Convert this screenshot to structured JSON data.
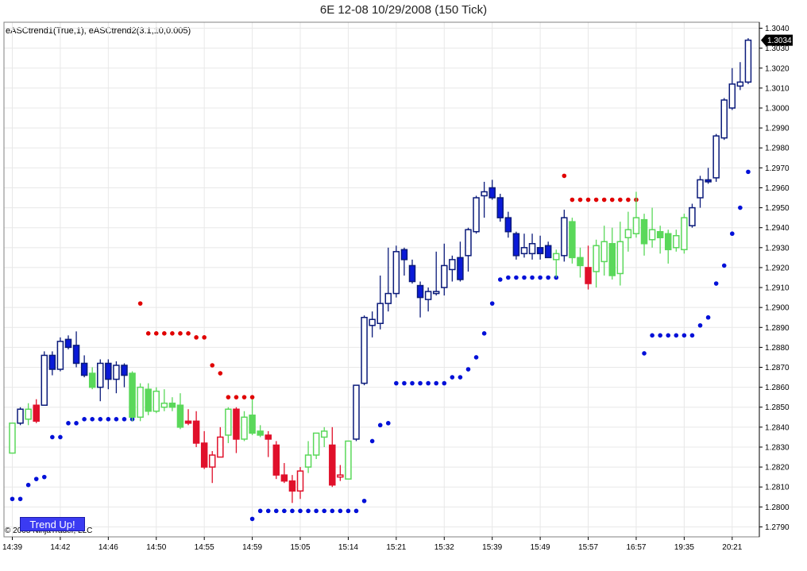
{
  "title": "6E 12-08  10/29/2008 (150 Tick)",
  "indicator_label": "eASCtrend1(True,1), eASCtrend2(3.1,10,0.005)",
  "copyright": "© 2008 NinjaTrader, LLC",
  "trend_button": {
    "label": "Trend Up!",
    "color": "#3b3bf2"
  },
  "colors": {
    "up_outline": "#0a1a7a",
    "down_fill": "#0a1ad8",
    "neutral": "#5ad85a",
    "bear": "#e0102a",
    "dot_red": "#e00000",
    "dot_blue": "#0010d8",
    "grid": "#e8e8e8"
  },
  "chart_data": {
    "type": "candlestick",
    "title": "6E 12-08  10/29/2008 (150 Tick)",
    "ylim": [
      1.2785,
      1.3043
    ],
    "y_ticks": [
      "1.2790",
      "1.2800",
      "1.2810",
      "1.2820",
      "1.2830",
      "1.2840",
      "1.2850",
      "1.2860",
      "1.2870",
      "1.2880",
      "1.2890",
      "1.2900",
      "1.2910",
      "1.2920",
      "1.2930",
      "1.2940",
      "1.2950",
      "1.2960",
      "1.2970",
      "1.2980",
      "1.2990",
      "1.3000",
      "1.3010",
      "1.3020",
      "1.3030",
      "1.3040"
    ],
    "last_price": "1.3034",
    "x_ticks": [
      {
        "label": "14:39",
        "bar": 0
      },
      {
        "label": "14:42",
        "bar": 6
      },
      {
        "label": "14:46",
        "bar": 12
      },
      {
        "label": "14:50",
        "bar": 18
      },
      {
        "label": "14:55",
        "bar": 24
      },
      {
        "label": "14:59",
        "bar": 30
      },
      {
        "label": "15:05",
        "bar": 36
      },
      {
        "label": "15:14",
        "bar": 42
      },
      {
        "label": "15:21",
        "bar": 48
      },
      {
        "label": "15:32",
        "bar": 54
      },
      {
        "label": "15:39",
        "bar": 60
      },
      {
        "label": "15:49",
        "bar": 66
      },
      {
        "label": "15:57",
        "bar": 72
      },
      {
        "label": "16:57",
        "bar": 78
      },
      {
        "label": "19:35",
        "bar": 84
      },
      {
        "label": "20:21",
        "bar": 90
      }
    ],
    "candles": [
      {
        "o": 1.2827,
        "h": 1.2842,
        "l": 1.2827,
        "c": 1.2842,
        "k": "n"
      },
      {
        "o": 1.2842,
        "h": 1.285,
        "l": 1.2841,
        "c": 1.2849,
        "k": "u"
      },
      {
        "o": 1.2844,
        "h": 1.2852,
        "l": 1.2841,
        "c": 1.2849,
        "k": "n"
      },
      {
        "o": 1.2843,
        "h": 1.2854,
        "l": 1.2842,
        "c": 1.2851,
        "k": "b"
      },
      {
        "o": 1.2851,
        "h": 1.2878,
        "l": 1.2851,
        "c": 1.2876,
        "k": "u"
      },
      {
        "o": 1.2876,
        "h": 1.2878,
        "l": 1.2866,
        "c": 1.2869,
        "k": "d"
      },
      {
        "o": 1.2869,
        "h": 1.2885,
        "l": 1.2868,
        "c": 1.2883,
        "k": "u"
      },
      {
        "o": 1.2884,
        "h": 1.2886,
        "l": 1.2879,
        "c": 1.288,
        "k": "d"
      },
      {
        "o": 1.2881,
        "h": 1.2888,
        "l": 1.287,
        "c": 1.2872,
        "k": "d"
      },
      {
        "o": 1.2872,
        "h": 1.2876,
        "l": 1.2865,
        "c": 1.2866,
        "k": "d"
      },
      {
        "o": 1.2867,
        "h": 1.287,
        "l": 1.2859,
        "c": 1.286,
        "k": "n"
      },
      {
        "o": 1.286,
        "h": 1.2874,
        "l": 1.2853,
        "c": 1.2872,
        "k": "u"
      },
      {
        "o": 1.2872,
        "h": 1.2874,
        "l": 1.2859,
        "c": 1.2864,
        "k": "d"
      },
      {
        "o": 1.2864,
        "h": 1.2873,
        "l": 1.2857,
        "c": 1.2871,
        "k": "u"
      },
      {
        "o": 1.2871,
        "h": 1.2872,
        "l": 1.286,
        "c": 1.2866,
        "k": "d"
      },
      {
        "o": 1.2867,
        "h": 1.2868,
        "l": 1.2843,
        "c": 1.2845,
        "k": "n"
      },
      {
        "o": 1.2845,
        "h": 1.2862,
        "l": 1.2843,
        "c": 1.286,
        "k": "n"
      },
      {
        "o": 1.2859,
        "h": 1.2862,
        "l": 1.2846,
        "c": 1.2848,
        "k": "n"
      },
      {
        "o": 1.2848,
        "h": 1.286,
        "l": 1.2847,
        "c": 1.2858,
        "k": "n"
      },
      {
        "o": 1.285,
        "h": 1.2859,
        "l": 1.2848,
        "c": 1.2852,
        "k": "n"
      },
      {
        "o": 1.2852,
        "h": 1.2855,
        "l": 1.2848,
        "c": 1.285,
        "k": "n"
      },
      {
        "o": 1.2851,
        "h": 1.2857,
        "l": 1.2839,
        "c": 1.284,
        "k": "n"
      },
      {
        "o": 1.2842,
        "h": 1.2849,
        "l": 1.2841,
        "c": 1.2843,
        "k": "b"
      },
      {
        "o": 1.2843,
        "h": 1.2848,
        "l": 1.283,
        "c": 1.2832,
        "k": "b"
      },
      {
        "o": 1.2832,
        "h": 1.2838,
        "l": 1.2819,
        "c": 1.282,
        "k": "b"
      },
      {
        "o": 1.282,
        "h": 1.2828,
        "l": 1.2812,
        "c": 1.2826,
        "k": "bo"
      },
      {
        "o": 1.2825,
        "h": 1.284,
        "l": 1.2825,
        "c": 1.2835,
        "k": "bo"
      },
      {
        "o": 1.2836,
        "h": 1.285,
        "l": 1.2832,
        "c": 1.2849,
        "k": "n"
      },
      {
        "o": 1.2849,
        "h": 1.285,
        "l": 1.2827,
        "c": 1.2834,
        "k": "b"
      },
      {
        "o": 1.2834,
        "h": 1.2848,
        "l": 1.2833,
        "c": 1.2845,
        "k": "n"
      },
      {
        "o": 1.2846,
        "h": 1.2854,
        "l": 1.2836,
        "c": 1.2837,
        "k": "n"
      },
      {
        "o": 1.2838,
        "h": 1.2841,
        "l": 1.2835,
        "c": 1.2836,
        "k": "n"
      },
      {
        "o": 1.2836,
        "h": 1.2838,
        "l": 1.2825,
        "c": 1.2834,
        "k": "b"
      },
      {
        "o": 1.2831,
        "h": 1.2833,
        "l": 1.2814,
        "c": 1.2816,
        "k": "b"
      },
      {
        "o": 1.2816,
        "h": 1.2822,
        "l": 1.2812,
        "c": 1.2813,
        "k": "b"
      },
      {
        "o": 1.2813,
        "h": 1.2816,
        "l": 1.2802,
        "c": 1.2808,
        "k": "b"
      },
      {
        "o": 1.2808,
        "h": 1.282,
        "l": 1.2804,
        "c": 1.2818,
        "k": "bo"
      },
      {
        "o": 1.282,
        "h": 1.2833,
        "l": 1.2817,
        "c": 1.2826,
        "k": "n"
      },
      {
        "o": 1.2826,
        "h": 1.2837,
        "l": 1.2824,
        "c": 1.2837,
        "k": "n"
      },
      {
        "o": 1.2835,
        "h": 1.284,
        "l": 1.283,
        "c": 1.2838,
        "k": "n"
      },
      {
        "o": 1.2831,
        "h": 1.284,
        "l": 1.281,
        "c": 1.2811,
        "k": "b"
      },
      {
        "o": 1.2815,
        "h": 1.2821,
        "l": 1.2813,
        "c": 1.2816,
        "k": "bo"
      },
      {
        "o": 1.2814,
        "h": 1.2833,
        "l": 1.2814,
        "c": 1.2833,
        "k": "n"
      },
      {
        "o": 1.2834,
        "h": 1.2861,
        "l": 1.2833,
        "c": 1.2861,
        "k": "u"
      },
      {
        "o": 1.2862,
        "h": 1.2896,
        "l": 1.2861,
        "c": 1.2895,
        "k": "u"
      },
      {
        "o": 1.2891,
        "h": 1.2898,
        "l": 1.2885,
        "c": 1.2894,
        "k": "u"
      },
      {
        "o": 1.2892,
        "h": 1.2916,
        "l": 1.2889,
        "c": 1.2902,
        "k": "u"
      },
      {
        "o": 1.2902,
        "h": 1.293,
        "l": 1.2898,
        "c": 1.2907,
        "k": "u"
      },
      {
        "o": 1.2907,
        "h": 1.2931,
        "l": 1.2905,
        "c": 1.2928,
        "k": "u"
      },
      {
        "o": 1.2929,
        "h": 1.293,
        "l": 1.2916,
        "c": 1.2924,
        "k": "d"
      },
      {
        "o": 1.2921,
        "h": 1.2924,
        "l": 1.2912,
        "c": 1.2913,
        "k": "d"
      },
      {
        "o": 1.2911,
        "h": 1.2913,
        "l": 1.2895,
        "c": 1.2905,
        "k": "d"
      },
      {
        "o": 1.2904,
        "h": 1.291,
        "l": 1.2898,
        "c": 1.2908,
        "k": "u"
      },
      {
        "o": 1.2907,
        "h": 1.2928,
        "l": 1.2906,
        "c": 1.2908,
        "k": "u"
      },
      {
        "o": 1.291,
        "h": 1.2932,
        "l": 1.2906,
        "c": 1.2921,
        "k": "u"
      },
      {
        "o": 1.2919,
        "h": 1.2926,
        "l": 1.2913,
        "c": 1.2924,
        "k": "u"
      },
      {
        "o": 1.2925,
        "h": 1.2933,
        "l": 1.2913,
        "c": 1.2914,
        "k": "d"
      },
      {
        "o": 1.2926,
        "h": 1.294,
        "l": 1.2918,
        "c": 1.2939,
        "k": "u"
      },
      {
        "o": 1.2938,
        "h": 1.2956,
        "l": 1.2937,
        "c": 1.2955,
        "k": "u"
      },
      {
        "o": 1.2956,
        "h": 1.2963,
        "l": 1.2945,
        "c": 1.2958,
        "k": "u"
      },
      {
        "o": 1.296,
        "h": 1.2964,
        "l": 1.2954,
        "c": 1.2955,
        "k": "d"
      },
      {
        "o": 1.2955,
        "h": 1.2957,
        "l": 1.2943,
        "c": 1.2945,
        "k": "d"
      },
      {
        "o": 1.2945,
        "h": 1.2948,
        "l": 1.2935,
        "c": 1.2938,
        "k": "d"
      },
      {
        "o": 1.2937,
        "h": 1.2938,
        "l": 1.2924,
        "c": 1.2926,
        "k": "d"
      },
      {
        "o": 1.2927,
        "h": 1.2937,
        "l": 1.2925,
        "c": 1.293,
        "k": "u"
      },
      {
        "o": 1.2932,
        "h": 1.2937,
        "l": 1.2924,
        "c": 1.2927,
        "k": "u"
      },
      {
        "o": 1.293,
        "h": 1.2936,
        "l": 1.2924,
        "c": 1.2927,
        "k": "d"
      },
      {
        "o": 1.2931,
        "h": 1.2933,
        "l": 1.2925,
        "c": 1.2925,
        "k": "d"
      },
      {
        "o": 1.2924,
        "h": 1.2929,
        "l": 1.2915,
        "c": 1.2927,
        "k": "n"
      },
      {
        "o": 1.2926,
        "h": 1.2949,
        "l": 1.2923,
        "c": 1.2945,
        "k": "u"
      },
      {
        "o": 1.2943,
        "h": 1.2945,
        "l": 1.2922,
        "c": 1.2925,
        "k": "n"
      },
      {
        "o": 1.2925,
        "h": 1.293,
        "l": 1.2915,
        "c": 1.2921,
        "k": "n"
      },
      {
        "o": 1.292,
        "h": 1.2931,
        "l": 1.2909,
        "c": 1.2912,
        "k": "b"
      },
      {
        "o": 1.2918,
        "h": 1.2934,
        "l": 1.291,
        "c": 1.2931,
        "k": "n"
      },
      {
        "o": 1.2923,
        "h": 1.2941,
        "l": 1.2916,
        "c": 1.2933,
        "k": "n"
      },
      {
        "o": 1.2932,
        "h": 1.294,
        "l": 1.2914,
        "c": 1.2916,
        "k": "n"
      },
      {
        "o": 1.2917,
        "h": 1.2943,
        "l": 1.2911,
        "c": 1.2933,
        "k": "n"
      },
      {
        "o": 1.2935,
        "h": 1.2948,
        "l": 1.2928,
        "c": 1.2939,
        "k": "n"
      },
      {
        "o": 1.2937,
        "h": 1.2958,
        "l": 1.2935,
        "c": 1.2945,
        "k": "n"
      },
      {
        "o": 1.2944,
        "h": 1.2947,
        "l": 1.2926,
        "c": 1.2932,
        "k": "n"
      },
      {
        "o": 1.2934,
        "h": 1.295,
        "l": 1.293,
        "c": 1.2939,
        "k": "n"
      },
      {
        "o": 1.2938,
        "h": 1.2941,
        "l": 1.2927,
        "c": 1.2935,
        "k": "n"
      },
      {
        "o": 1.2937,
        "h": 1.2939,
        "l": 1.2922,
        "c": 1.2929,
        "k": "n"
      },
      {
        "o": 1.293,
        "h": 1.2939,
        "l": 1.2928,
        "c": 1.2936,
        "k": "n"
      },
      {
        "o": 1.2929,
        "h": 1.2947,
        "l": 1.2927,
        "c": 1.2945,
        "k": "n"
      },
      {
        "o": 1.2941,
        "h": 1.2952,
        "l": 1.294,
        "c": 1.295,
        "k": "u"
      },
      {
        "o": 1.2955,
        "h": 1.2966,
        "l": 1.295,
        "c": 1.2964,
        "k": "u"
      },
      {
        "o": 1.2963,
        "h": 1.297,
        "l": 1.2962,
        "c": 1.2964,
        "k": "d"
      },
      {
        "o": 1.2965,
        "h": 1.2987,
        "l": 1.2963,
        "c": 1.2986,
        "k": "u"
      },
      {
        "o": 1.2985,
        "h": 1.3005,
        "l": 1.2984,
        "c": 1.3004,
        "k": "u"
      },
      {
        "o": 1.3,
        "h": 1.302,
        "l": 1.2999,
        "c": 1.3012,
        "k": "u"
      },
      {
        "o": 1.3011,
        "h": 1.3023,
        "l": 1.3009,
        "c": 1.3013,
        "k": "u"
      },
      {
        "o": 1.3013,
        "h": 1.3035,
        "l": 1.3012,
        "c": 1.3034,
        "k": "u"
      }
    ],
    "stop_dots_blue": [
      {
        "bar": 0,
        "y": 1.2804
      },
      {
        "bar": 1,
        "y": 1.2804
      },
      {
        "bar": 2,
        "y": 1.2811
      },
      {
        "bar": 3,
        "y": 1.2814
      },
      {
        "bar": 4,
        "y": 1.2815
      },
      {
        "bar": 5,
        "y": 1.2835
      },
      {
        "bar": 6,
        "y": 1.2835
      },
      {
        "bar": 7,
        "y": 1.2842
      },
      {
        "bar": 8,
        "y": 1.2842
      },
      {
        "bar": 9,
        "y": 1.2844
      },
      {
        "bar": 10,
        "y": 1.2844
      },
      {
        "bar": 11,
        "y": 1.2844
      },
      {
        "bar": 12,
        "y": 1.2844
      },
      {
        "bar": 13,
        "y": 1.2844
      },
      {
        "bar": 14,
        "y": 1.2844
      },
      {
        "bar": 15,
        "y": 1.2844
      },
      {
        "bar": 30,
        "y": 1.2794
      },
      {
        "bar": 31,
        "y": 1.2798
      },
      {
        "bar": 32,
        "y": 1.2798
      },
      {
        "bar": 33,
        "y": 1.2798
      },
      {
        "bar": 34,
        "y": 1.2798
      },
      {
        "bar": 35,
        "y": 1.2798
      },
      {
        "bar": 36,
        "y": 1.2798
      },
      {
        "bar": 37,
        "y": 1.2798
      },
      {
        "bar": 38,
        "y": 1.2798
      },
      {
        "bar": 39,
        "y": 1.2798
      },
      {
        "bar": 40,
        "y": 1.2798
      },
      {
        "bar": 41,
        "y": 1.2798
      },
      {
        "bar": 42,
        "y": 1.2798
      },
      {
        "bar": 43,
        "y": 1.2798
      },
      {
        "bar": 44,
        "y": 1.2803
      },
      {
        "bar": 45,
        "y": 1.2833
      },
      {
        "bar": 46,
        "y": 1.2841
      },
      {
        "bar": 47,
        "y": 1.2842
      },
      {
        "bar": 48,
        "y": 1.2862
      },
      {
        "bar": 49,
        "y": 1.2862
      },
      {
        "bar": 50,
        "y": 1.2862
      },
      {
        "bar": 51,
        "y": 1.2862
      },
      {
        "bar": 52,
        "y": 1.2862
      },
      {
        "bar": 53,
        "y": 1.2862
      },
      {
        "bar": 54,
        "y": 1.2862
      },
      {
        "bar": 55,
        "y": 1.2865
      },
      {
        "bar": 56,
        "y": 1.2865
      },
      {
        "bar": 57,
        "y": 1.2869
      },
      {
        "bar": 58,
        "y": 1.2875
      },
      {
        "bar": 59,
        "y": 1.2887
      },
      {
        "bar": 60,
        "y": 1.2902
      },
      {
        "bar": 61,
        "y": 1.2914
      },
      {
        "bar": 62,
        "y": 1.2915
      },
      {
        "bar": 63,
        "y": 1.2915
      },
      {
        "bar": 64,
        "y": 1.2915
      },
      {
        "bar": 65,
        "y": 1.2915
      },
      {
        "bar": 66,
        "y": 1.2915
      },
      {
        "bar": 67,
        "y": 1.2915
      },
      {
        "bar": 68,
        "y": 1.2915
      },
      {
        "bar": 79,
        "y": 1.2877
      },
      {
        "bar": 80,
        "y": 1.2886
      },
      {
        "bar": 81,
        "y": 1.2886
      },
      {
        "bar": 82,
        "y": 1.2886
      },
      {
        "bar": 83,
        "y": 1.2886
      },
      {
        "bar": 84,
        "y": 1.2886
      },
      {
        "bar": 85,
        "y": 1.2886
      },
      {
        "bar": 86,
        "y": 1.2891
      },
      {
        "bar": 87,
        "y": 1.2895
      },
      {
        "bar": 88,
        "y": 1.2912
      },
      {
        "bar": 89,
        "y": 1.2921
      },
      {
        "bar": 90,
        "y": 1.2937
      },
      {
        "bar": 91,
        "y": 1.295
      },
      {
        "bar": 92,
        "y": 1.2968
      }
    ],
    "stop_dots_red": [
      {
        "bar": 16,
        "y": 1.2902
      },
      {
        "bar": 17,
        "y": 1.2887
      },
      {
        "bar": 18,
        "y": 1.2887
      },
      {
        "bar": 19,
        "y": 1.2887
      },
      {
        "bar": 20,
        "y": 1.2887
      },
      {
        "bar": 21,
        "y": 1.2887
      },
      {
        "bar": 22,
        "y": 1.2887
      },
      {
        "bar": 23,
        "y": 1.2885
      },
      {
        "bar": 24,
        "y": 1.2885
      },
      {
        "bar": 25,
        "y": 1.2871
      },
      {
        "bar": 26,
        "y": 1.2867
      },
      {
        "bar": 27,
        "y": 1.2855
      },
      {
        "bar": 28,
        "y": 1.2855
      },
      {
        "bar": 29,
        "y": 1.2855
      },
      {
        "bar": 30,
        "y": 1.2855
      },
      {
        "bar": 69,
        "y": 1.2966
      },
      {
        "bar": 70,
        "y": 1.2954
      },
      {
        "bar": 71,
        "y": 1.2954
      },
      {
        "bar": 72,
        "y": 1.2954
      },
      {
        "bar": 73,
        "y": 1.2954
      },
      {
        "bar": 74,
        "y": 1.2954
      },
      {
        "bar": 75,
        "y": 1.2954
      },
      {
        "bar": 76,
        "y": 1.2954
      },
      {
        "bar": 77,
        "y": 1.2954
      },
      {
        "bar": 78,
        "y": 1.2954
      }
    ]
  }
}
